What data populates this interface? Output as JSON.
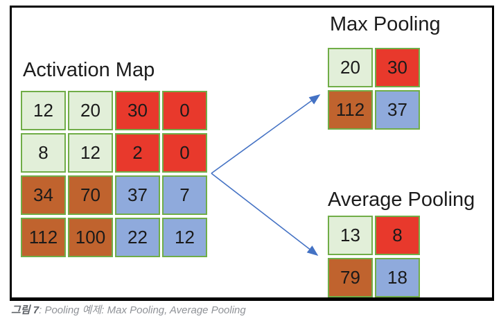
{
  "activation_map": {
    "title": "Activation Map",
    "cells": [
      {
        "value": "12",
        "color": "green"
      },
      {
        "value": "20",
        "color": "green"
      },
      {
        "value": "30",
        "color": "red"
      },
      {
        "value": "0",
        "color": "red"
      },
      {
        "value": "8",
        "color": "green"
      },
      {
        "value": "12",
        "color": "green"
      },
      {
        "value": "2",
        "color": "red"
      },
      {
        "value": "0",
        "color": "red"
      },
      {
        "value": "34",
        "color": "brown"
      },
      {
        "value": "70",
        "color": "brown"
      },
      {
        "value": "37",
        "color": "blue"
      },
      {
        "value": "7",
        "color": "blue"
      },
      {
        "value": "112",
        "color": "brown"
      },
      {
        "value": "100",
        "color": "brown"
      },
      {
        "value": "22",
        "color": "blue"
      },
      {
        "value": "12",
        "color": "blue"
      }
    ]
  },
  "max_pooling": {
    "title": "Max Pooling",
    "cells": [
      {
        "value": "20",
        "color": "green"
      },
      {
        "value": "30",
        "color": "red"
      },
      {
        "value": "112",
        "color": "brown"
      },
      {
        "value": "37",
        "color": "blue"
      }
    ]
  },
  "average_pooling": {
    "title": "Average Pooling",
    "cells": [
      {
        "value": "13",
        "color": "green"
      },
      {
        "value": "8",
        "color": "red"
      },
      {
        "value": "79",
        "color": "brown"
      },
      {
        "value": "18",
        "color": "blue"
      }
    ]
  },
  "caption": {
    "label": "그림 7",
    "text": ": Pooling 예제: Max Pooling, Average Pooling"
  },
  "colors": {
    "green_fill": "#E2EFD9",
    "red_fill": "#E8392C",
    "brown_fill": "#C0632E",
    "blue_fill": "#8FAADC",
    "cell_border": "#70AD47",
    "arrow": "#4472C4"
  }
}
